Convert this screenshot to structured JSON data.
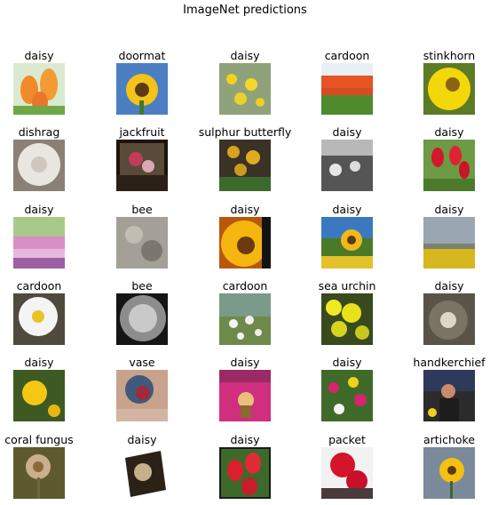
{
  "title": "ImageNet predictions",
  "chart_data": {
    "type": "image-grid",
    "title": "ImageNet predictions",
    "rows": 6,
    "cols": 5,
    "cells": [
      {
        "label": "daisy",
        "scene": "tulips-orange"
      },
      {
        "label": "doormat",
        "scene": "sunflower-blue-sky"
      },
      {
        "label": "daisy",
        "scene": "yellow-flowers-field"
      },
      {
        "label": "cardoon",
        "scene": "tulip-field-orange"
      },
      {
        "label": "stinkhorn",
        "scene": "yellow-flower-bee"
      },
      {
        "label": "dishrag",
        "scene": "dandelion-puff"
      },
      {
        "label": "jackfruit",
        "scene": "flowers-dark-frame"
      },
      {
        "label": "sulphur butterfly",
        "scene": "sunflowers-dark"
      },
      {
        "label": "daisy",
        "scene": "crowd-bw"
      },
      {
        "label": "daisy",
        "scene": "red-tulips"
      },
      {
        "label": "daisy",
        "scene": "pink-flower-park"
      },
      {
        "label": "bee",
        "scene": "dry-grass-grey"
      },
      {
        "label": "daisy",
        "scene": "sunflower-closeup"
      },
      {
        "label": "daisy",
        "scene": "sunflower-field-sky"
      },
      {
        "label": "daisy",
        "scene": "hazy-field"
      },
      {
        "label": "cardoon",
        "scene": "white-daisy"
      },
      {
        "label": "bee",
        "scene": "dandelion-dark"
      },
      {
        "label": "cardoon",
        "scene": "small-daisies"
      },
      {
        "label": "sea urchin",
        "scene": "yellow-flower-bush"
      },
      {
        "label": "daisy",
        "scene": "dandelion-blur"
      },
      {
        "label": "daisy",
        "scene": "yellow-dandelion"
      },
      {
        "label": "vase",
        "scene": "tattoo"
      },
      {
        "label": "daisy",
        "scene": "pink-tulips-person"
      },
      {
        "label": "daisy",
        "scene": "mixed-flowers"
      },
      {
        "label": "handkerchief",
        "scene": "person-outdoor"
      },
      {
        "label": "coral fungus",
        "scene": "dried-flower"
      },
      {
        "label": "daisy",
        "scene": "tilted-photo"
      },
      {
        "label": "daisy",
        "scene": "red-tulips-framed"
      },
      {
        "label": "packet",
        "scene": "red-flowers-drawing"
      },
      {
        "label": "artichoke",
        "scene": "sunflower-wall"
      }
    ]
  }
}
